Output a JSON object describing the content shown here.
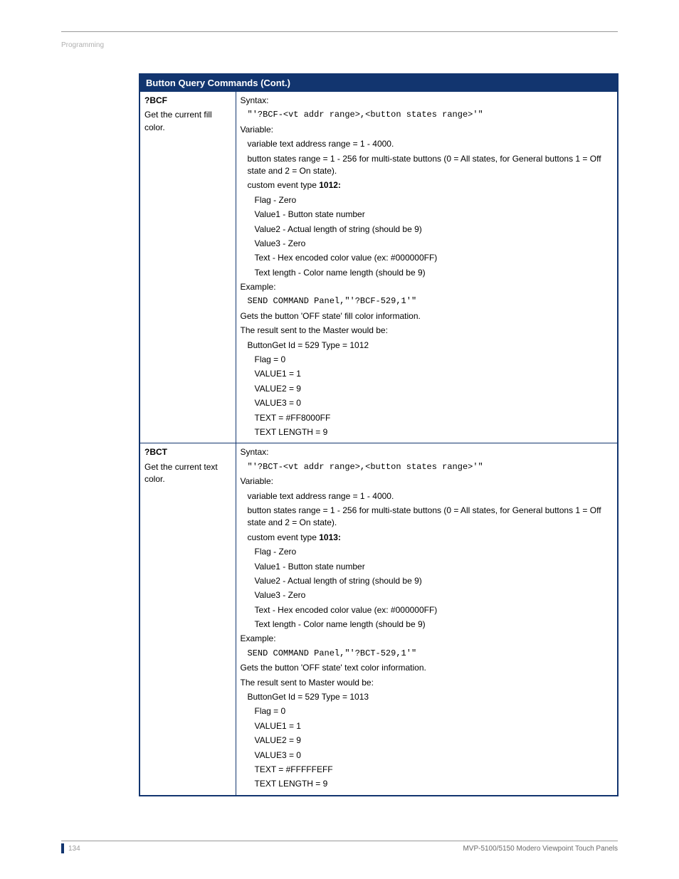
{
  "header": {
    "section": "Programming"
  },
  "table": {
    "title": "Button Query Commands (Cont.)",
    "border_color": "#12356f",
    "header_bg": "#12356f",
    "header_fg": "#ffffff",
    "rows": [
      {
        "cmd": "?BCF",
        "desc": "Get the current fill color.",
        "syntax_label": "Syntax:",
        "syntax_code": "\"'?BCF-<vt addr range>,<button states range>'\"",
        "variable_label": "Variable:",
        "var_line1": "variable text address range = 1 - 4000.",
        "var_line2": "button states range = 1 - 256 for multi-state buttons (0 = All states, for General buttons 1 = Off state and 2 = On state).",
        "event_label": "custom event type ",
        "event_num": "1012:",
        "flag": "Flag   - Zero",
        "v1": "Value1 - Button state number",
        "v2": "Value2 - Actual length of string (should be 9)",
        "v3": "Value3 - Zero",
        "txt": "Text   - Hex encoded color value (ex: #000000FF)",
        "txtlen": "Text length - Color name length (should be 9)",
        "example_label": "Example:",
        "example_code": "SEND COMMAND Panel,\"'?BCF-529,1'\"",
        "gets": "Gets the button 'OFF state' fill color information.",
        "result_label": "The result sent to the Master would be:",
        "r_btnget": "ButtonGet Id = 529 Type = 1012",
        "r_flag": "Flag  = 0",
        "r_v1": "VALUE1 = 1",
        "r_v2": "VALUE2 = 9",
        "r_v3": "VALUE3 = 0",
        "r_text": "TEXT  = #FF8000FF",
        "r_tlen": "TEXT LENGTH = 9"
      },
      {
        "cmd": "?BCT",
        "desc": "Get the current text color.",
        "syntax_label": "Syntax:",
        "syntax_code": "\"'?BCT-<vt addr range>,<button states range>'\"",
        "variable_label": "Variable:",
        "var_line1": "variable text address range = 1 - 4000.",
        "var_line2": "button states range = 1 - 256 for multi-state buttons (0 = All states, for General buttons 1 = Off state and 2 = On state).",
        "event_label": "custom event type ",
        "event_num": "1013:",
        "flag": "Flag   - Zero",
        "v1": "Value1 - Button state number",
        "v2": "Value2 - Actual length of string (should be 9)",
        "v3": "Value3 - Zero",
        "txt": "Text   - Hex encoded color value (ex: #000000FF)",
        "txtlen": "Text length - Color name length (should be 9)",
        "example_label": "Example:",
        "example_code": "SEND COMMAND Panel,\"'?BCT-529,1'\"",
        "gets": "Gets the button 'OFF state' text color information.",
        "result_label": "The result sent to Master would be:",
        "r_btnget": "ButtonGet Id = 529 Type = 1013",
        "r_flag": "Flag  = 0",
        "r_v1": "VALUE1 = 1",
        "r_v2": "VALUE2 = 9",
        "r_v3": "VALUE3 = 0",
        "r_text": "TEXT  = #FFFFFEFF",
        "r_tlen": "TEXT LENGTH = 9"
      }
    ]
  },
  "footer": {
    "page": "134",
    "title": "MVP-5100/5150 Modero Viewpoint  Touch Panels"
  }
}
